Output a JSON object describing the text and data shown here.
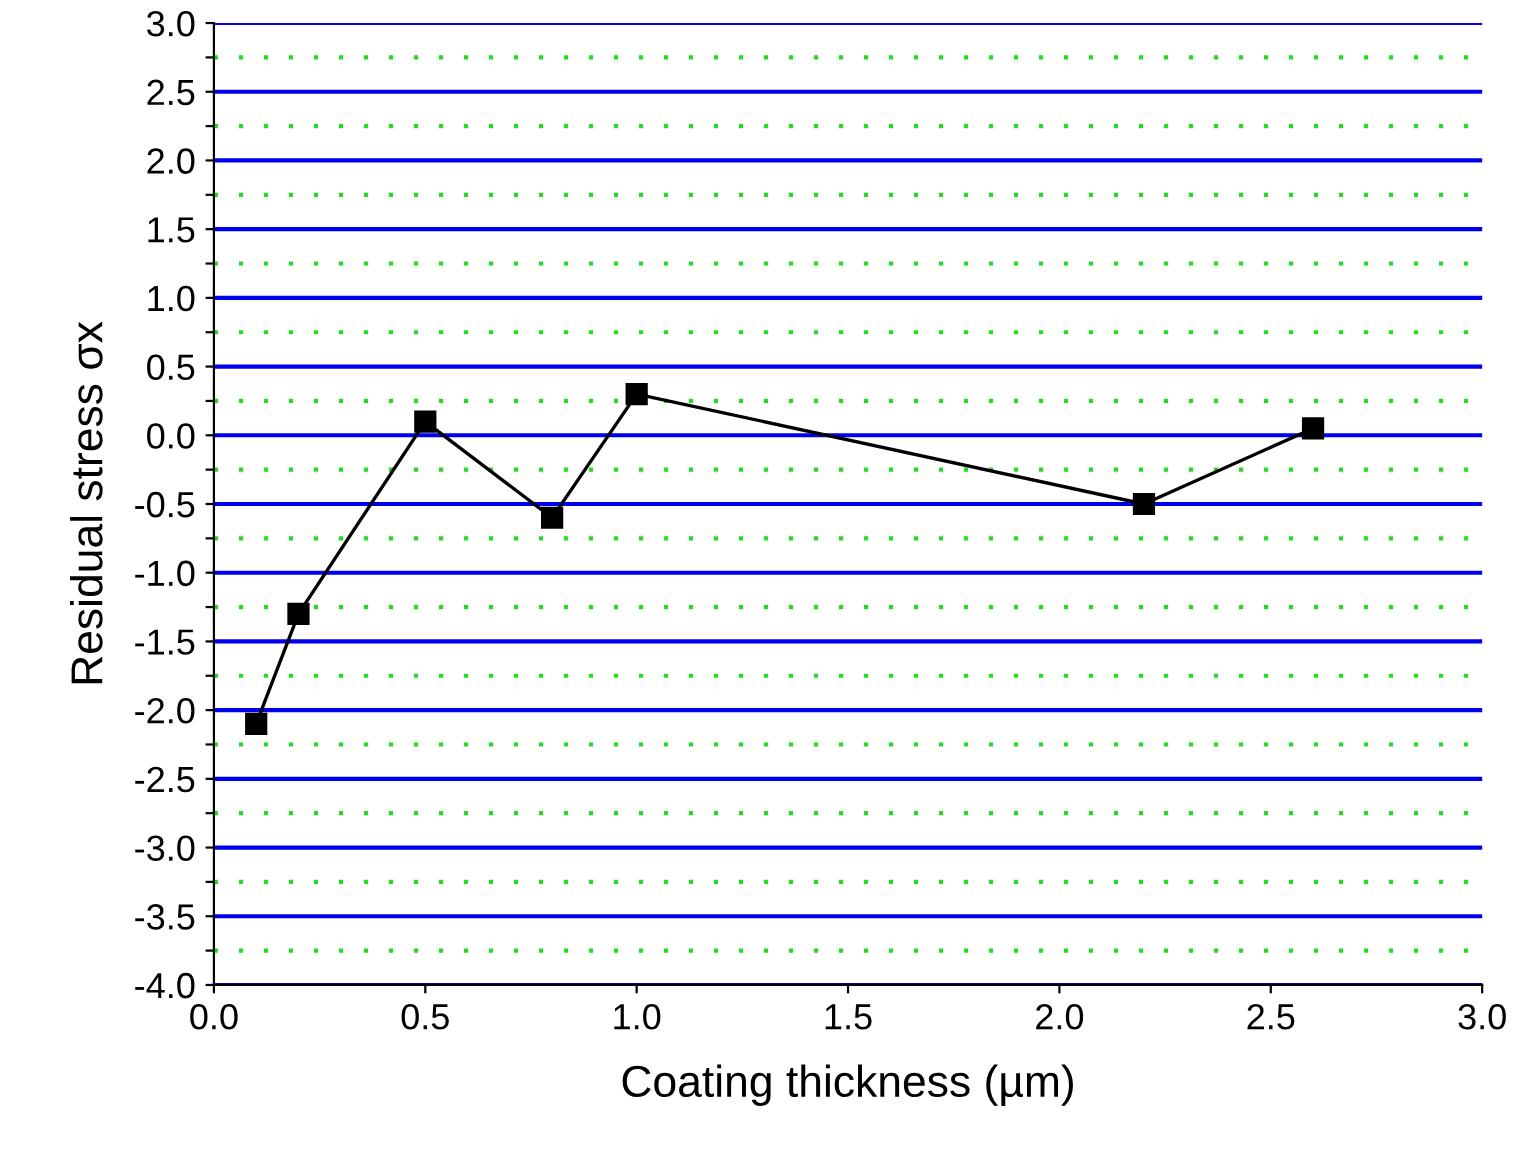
{
  "chart_data": {
    "type": "line",
    "xlabel": "Coating thickness (µm)",
    "ylabel": "Residual stress σx",
    "x": [
      0.1,
      0.2,
      0.5,
      0.8,
      1.0,
      2.2,
      2.6
    ],
    "series": [
      {
        "color": "#000000",
        "values": [
          -2.1,
          -1.3,
          0.1,
          -0.6,
          0.3,
          -0.5,
          0.05
        ]
      }
    ],
    "marker": "square",
    "line_style": "solid",
    "grid": "y",
    "xlim": [
      0,
      3
    ],
    "ylim": [
      -4,
      3
    ],
    "xticks": [
      {
        "value": 0,
        "label": "0.0"
      },
      0.5,
      {
        "value": 1,
        "label": "1.0"
      },
      1.5,
      {
        "value": 2,
        "label": "2.0"
      },
      2.5,
      {
        "value": 3,
        "label": "3.0"
      }
    ],
    "yticks": [
      {
        "value": -4,
        "label": "-4.0"
      },
      {
        "value": -3.75,
        "label": null
      },
      {
        "value": -3.5,
        "label": "-3.5"
      },
      {
        "value": -3.25,
        "label": null
      },
      {
        "value": -3,
        "label": "-3.0"
      },
      {
        "value": -2.75,
        "label": null
      },
      {
        "value": -2.5,
        "label": "-2.5"
      },
      {
        "value": -2.25,
        "label": null
      },
      {
        "value": -2,
        "label": "-2.0"
      },
      {
        "value": -1.75,
        "label": null
      },
      {
        "value": -1.5,
        "label": "-1.5"
      },
      {
        "value": -1.25,
        "label": null
      },
      {
        "value": -1,
        "label": "-1.0"
      },
      {
        "value": -0.75,
        "label": null
      },
      {
        "value": -0.5,
        "label": "-0.5"
      },
      {
        "value": -0.25,
        "label": null
      },
      {
        "value": 0,
        "label": "0.0"
      },
      {
        "value": 0.25,
        "label": null
      },
      {
        "value": 0.5,
        "label": "0.5"
      },
      {
        "value": 0.75,
        "label": null
      },
      {
        "value": 1,
        "label": "1.0"
      },
      {
        "value": 1.25,
        "label": null
      },
      {
        "value": 1.5,
        "label": "1.5"
      },
      {
        "value": 1.75,
        "label": null
      },
      {
        "value": 2,
        "label": "2.0"
      },
      {
        "value": 2.25,
        "label": null
      },
      {
        "value": 2.5,
        "label": "2.5"
      },
      {
        "value": 2.75,
        "label": null
      },
      {
        "value": 3,
        "label": "3.0"
      }
    ]
  }
}
